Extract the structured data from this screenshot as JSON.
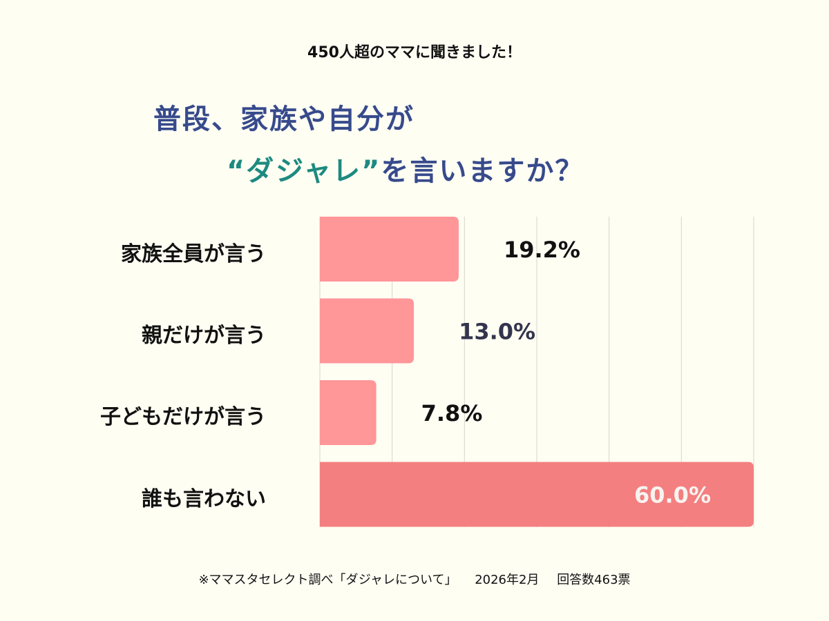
{
  "subtitle": "450人超のママに聞きました！",
  "title_line1": "普段、家族や自分が",
  "title_line2_highlight": "“ダジャレ”",
  "title_line2_rest": "を言いますか？",
  "chart_data": {
    "type": "bar",
    "orientation": "horizontal",
    "categories": [
      "家族全員が言う",
      "親だけが言う",
      "子どもだけが言う",
      "誰も言わない"
    ],
    "values": [
      19.2,
      13.0,
      7.8,
      60.0
    ],
    "data_labels": [
      "19.2%",
      "13.0%",
      "7.8%",
      "60.0%"
    ],
    "unit": "%",
    "xlim": [
      0,
      60
    ],
    "grid": true,
    "grid_step": 10,
    "colors": {
      "bar": "#ff9698",
      "bar_highlight": "#f47f80",
      "grid": "#d6d6cc"
    }
  },
  "footer": {
    "source": "※ママスタセレクト調べ「ダジャレについて」",
    "date": "2026年2月",
    "responses": "回答数463票"
  }
}
